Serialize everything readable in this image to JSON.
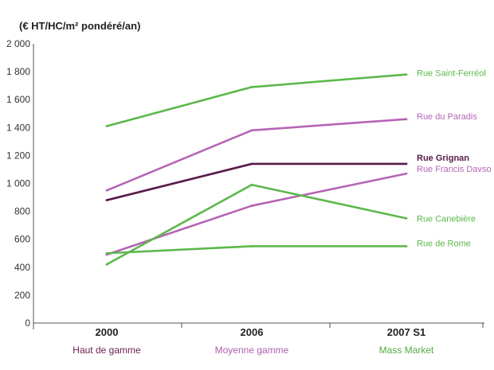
{
  "chart_data": {
    "type": "line",
    "ylabel": "(€ HT/HC/m² pondéré/an)",
    "ylim": [
      0,
      2000
    ],
    "yticks": [
      {
        "value": 0,
        "label": "0"
      },
      {
        "value": 200,
        "label": "200"
      },
      {
        "value": 400,
        "label": "400"
      },
      {
        "value": 600,
        "label": "600"
      },
      {
        "value": 800,
        "label": "800"
      },
      {
        "value": 1000,
        "label": "1 000"
      },
      {
        "value": 1200,
        "label": "1 200"
      },
      {
        "value": 1400,
        "label": "1 400"
      },
      {
        "value": 1600,
        "label": "1 600"
      },
      {
        "value": 1800,
        "label": "1 800"
      },
      {
        "value": 2000,
        "label": "2 000"
      }
    ],
    "categories": [
      "2000",
      "2006",
      "2007 S1"
    ],
    "category_notes": [
      {
        "text": "Haut de gamme",
        "color": "#6b1f4f"
      },
      {
        "text": "Moyenne gamme",
        "color": "#b060b0"
      },
      {
        "text": "Mass Market",
        "color": "#55aa44"
      }
    ],
    "series": [
      {
        "name": "Rue Saint-Ferréol",
        "values": [
          1410,
          1690,
          1780
        ],
        "color": "#5cb84c"
      },
      {
        "name": "Rue du Paradis",
        "values": [
          950,
          1380,
          1460
        ],
        "color": "#b565b5"
      },
      {
        "name": "Rue Grignan",
        "values": [
          880,
          1140,
          1140
        ],
        "color": "#5a1a48"
      },
      {
        "name": "Rue Francis Davso",
        "values": [
          490,
          840,
          1070
        ],
        "color": "#b565b5"
      },
      {
        "name": "Rue Canebière",
        "values": [
          420,
          990,
          750
        ],
        "color": "#5cb84c"
      },
      {
        "name": "Rue de Rome",
        "values": [
          500,
          550,
          550
        ],
        "color": "#5cb84c"
      }
    ],
    "grid": false,
    "legend": "right-of-line-ends"
  }
}
